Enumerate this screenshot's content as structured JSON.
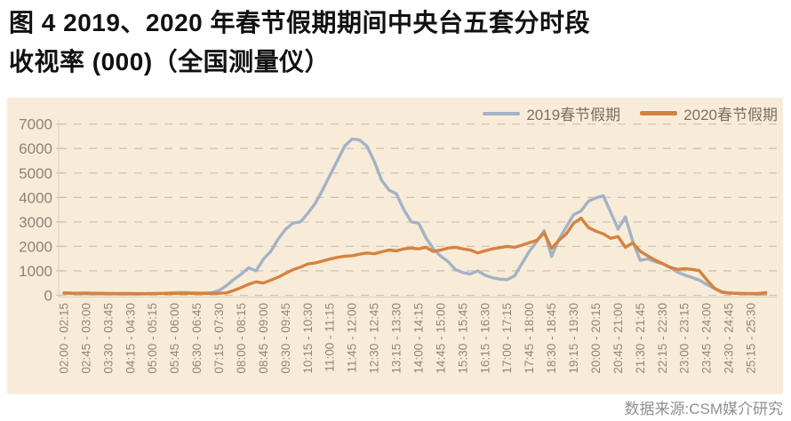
{
  "page": {
    "title_line1": "图 4 2019、2020 年春节假期期间中央台五套分时段",
    "title_line2": "收视率 (000)（全国测量仪）",
    "source_note": "数据来源:CSM媒介研究"
  },
  "colors": {
    "panel_bg": "#f8ecd9",
    "grid": "#cbc5b8",
    "axis_line": "#dccfba",
    "y_axis_text": "#8c8376",
    "x_axis_text": "#91887a",
    "title_text": "#111111",
    "legend_text": "#7b7063",
    "source_text": "#909090",
    "series_2019": "#a3b2c6",
    "series_2020": "#d6823f"
  },
  "chart_data": {
    "type": "line",
    "title": "2019、2020 年春节假期期间中央台五套分时段收视率 (000)（全国测量仪）",
    "ylim": [
      0,
      7000
    ],
    "y_ticks": [
      0,
      1000,
      2000,
      3000,
      4000,
      5000,
      6000,
      7000
    ],
    "grid": "horizontal-dashed",
    "legend_position": "top-right",
    "x_start": "02:00",
    "x_step_minutes": 15,
    "x_points": 96,
    "x_tick_every": 3,
    "x_tick_labels": [
      "02:00 - 02:15",
      "02:45 - 03:00",
      "03:30 - 03:45",
      "04:15 - 04:30",
      "05:00 - 05:15",
      "05:45 - 06:00",
      "06:30 - 06:45",
      "07:15 - 07:30",
      "08:00 - 08:15",
      "08:45 - 09:00",
      "09:30 - 09:45",
      "10:15 - 10:30",
      "11:00 - 11:15",
      "11:45 - 12:00",
      "12:30 - 12:45",
      "13:15 - 13:30",
      "14:00 - 14:15",
      "14:45 - 15:00",
      "15:30 - 15:45",
      "16:15 - 16:30",
      "17:00 - 17:15",
      "17:45 - 18:00",
      "18:30 - 18:45",
      "19:15 - 19:30",
      "20:00 - 20:15",
      "20:45 - 21:00",
      "21:30 - 21:45",
      "22:15 - 22:30",
      "23:00 - 23:15",
      "23:45 - 24:00",
      "24:30 - 24:45",
      "25:15 - 25:30"
    ],
    "series": [
      {
        "name": "2019春节假期",
        "color": "#a3b2c6",
        "values": [
          80,
          70,
          65,
          60,
          60,
          55,
          55,
          50,
          50,
          48,
          48,
          55,
          65,
          80,
          95,
          110,
          120,
          110,
          95,
          90,
          110,
          200,
          400,
          650,
          870,
          1120,
          1000,
          1480,
          1800,
          2300,
          2700,
          2950,
          3000,
          3350,
          3750,
          4300,
          4900,
          5500,
          6100,
          6390,
          6350,
          6100,
          5470,
          4700,
          4300,
          4150,
          3500,
          3000,
          2950,
          2350,
          1900,
          1600,
          1380,
          1050,
          930,
          870,
          1000,
          820,
          720,
          660,
          640,
          800,
          1300,
          1800,
          2200,
          2650,
          1590,
          2290,
          2800,
          3300,
          3450,
          3850,
          3980,
          4070,
          3400,
          2710,
          3200,
          2200,
          1430,
          1490,
          1380,
          1290,
          1150,
          950,
          830,
          730,
          620,
          450,
          280,
          150,
          100,
          80,
          60,
          55,
          50,
          45
        ]
      },
      {
        "name": "2020春节假期",
        "color": "#d6823f",
        "values": [
          100,
          90,
          88,
          90,
          85,
          82,
          80,
          78,
          75,
          72,
          70,
          70,
          72,
          75,
          75,
          78,
          80,
          80,
          78,
          75,
          80,
          85,
          100,
          200,
          320,
          450,
          550,
          500,
          620,
          740,
          900,
          1050,
          1150,
          1280,
          1320,
          1400,
          1480,
          1550,
          1600,
          1620,
          1680,
          1730,
          1700,
          1780,
          1850,
          1820,
          1900,
          1930,
          1900,
          1960,
          1790,
          1850,
          1930,
          1960,
          1900,
          1850,
          1730,
          1820,
          1900,
          1950,
          2000,
          1960,
          2050,
          2150,
          2250,
          2550,
          1920,
          2250,
          2510,
          2950,
          3150,
          2770,
          2620,
          2510,
          2330,
          2400,
          1960,
          2140,
          1800,
          1620,
          1440,
          1300,
          1150,
          1060,
          1090,
          1060,
          1010,
          640,
          300,
          130,
          90,
          85,
          80,
          75,
          72,
          110
        ]
      }
    ]
  }
}
